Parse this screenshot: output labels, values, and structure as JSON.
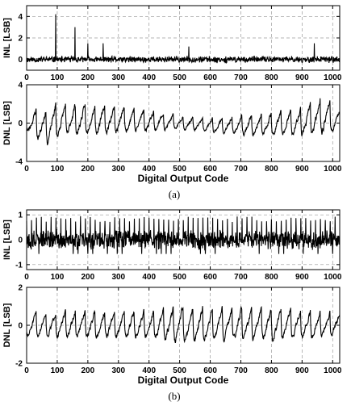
{
  "chart_data": [
    {
      "type": "line",
      "ylabel": "INL [LSB]",
      "xlabel": "",
      "xlim": [
        0,
        1023
      ],
      "ylim": [
        -1,
        5
      ],
      "yticks": [
        "0",
        "2",
        "4"
      ],
      "xticks": [
        "0",
        "100",
        "200",
        "300",
        "400",
        "500",
        "600",
        "700",
        "800",
        "900",
        "1000"
      ],
      "grid": "dashed",
      "noise_amplitude": 0.35,
      "spikes": [
        {
          "x": 95,
          "y": 4.2
        },
        {
          "x": 158,
          "y": 3.0
        },
        {
          "x": 200,
          "y": 1.5
        },
        {
          "x": 250,
          "y": 1.5
        },
        {
          "x": 530,
          "y": 1.2
        },
        {
          "x": 940,
          "y": 1.5
        }
      ],
      "seed": 11
    },
    {
      "type": "line",
      "ylabel": "DNL [LSB]",
      "xlabel": "Digital Output Code",
      "xlim": [
        0,
        1023
      ],
      "ylim": [
        -4,
        4
      ],
      "yticks": [
        "-4",
        "0",
        "4"
      ],
      "xticks": [
        "0",
        "100",
        "200",
        "300",
        "400",
        "500",
        "600",
        "700",
        "800",
        "900",
        "1000"
      ],
      "grid": "dashed",
      "sawtooth": {
        "x": [
          0,
          60,
          100,
          200,
          300,
          400,
          500,
          600,
          700,
          800,
          900,
          970,
          1023
        ],
        "amplitude": [
          1.5,
          2.8,
          2.5,
          2.2,
          2.0,
          1.6,
          1.0,
          1.0,
          1.5,
          1.8,
          2.0,
          3.0,
          1.5
        ],
        "offset": [
          0.3,
          -0.5,
          0.2,
          0.3,
          0.3,
          0.2,
          0.0,
          -0.3,
          -0.3,
          -0.2,
          0.0,
          0.8,
          0.0
        ],
        "period": 32
      },
      "seed": 23
    },
    {
      "type": "line",
      "ylabel": "INL [LSB]",
      "xlabel": "",
      "xlim": [
        0,
        1023
      ],
      "ylim": [
        -1.2,
        1.2
      ],
      "yticks": [
        "-1",
        "0",
        "1"
      ],
      "xticks": [
        "0",
        "100",
        "200",
        "300",
        "400",
        "500",
        "600",
        "700",
        "800",
        "900",
        "1000"
      ],
      "grid": "dashed",
      "noise_amplitude": 0.45,
      "spike_period": 16,
      "spike_height": 0.95,
      "seed": 37
    },
    {
      "type": "line",
      "ylabel": "DNL [LSB]",
      "xlabel": "Digital Output Code",
      "xlim": [
        0,
        1023
      ],
      "ylim": [
        -2,
        2
      ],
      "yticks": [
        "-2",
        "0",
        "2"
      ],
      "xticks": [
        "0",
        "100",
        "200",
        "300",
        "400",
        "500",
        "600",
        "700",
        "800",
        "900",
        "1000"
      ],
      "grid": "dashed",
      "sawtooth": {
        "x": [
          0,
          200,
          400,
          500,
          600,
          800,
          1023
        ],
        "amplitude": [
          0.9,
          1.0,
          1.0,
          1.4,
          1.2,
          1.2,
          0.9
        ],
        "offset": [
          0,
          0,
          0,
          0,
          0,
          0,
          0
        ],
        "period": 32
      },
      "seed": 51
    }
  ],
  "captions": [
    "(a)",
    "(b)"
  ]
}
